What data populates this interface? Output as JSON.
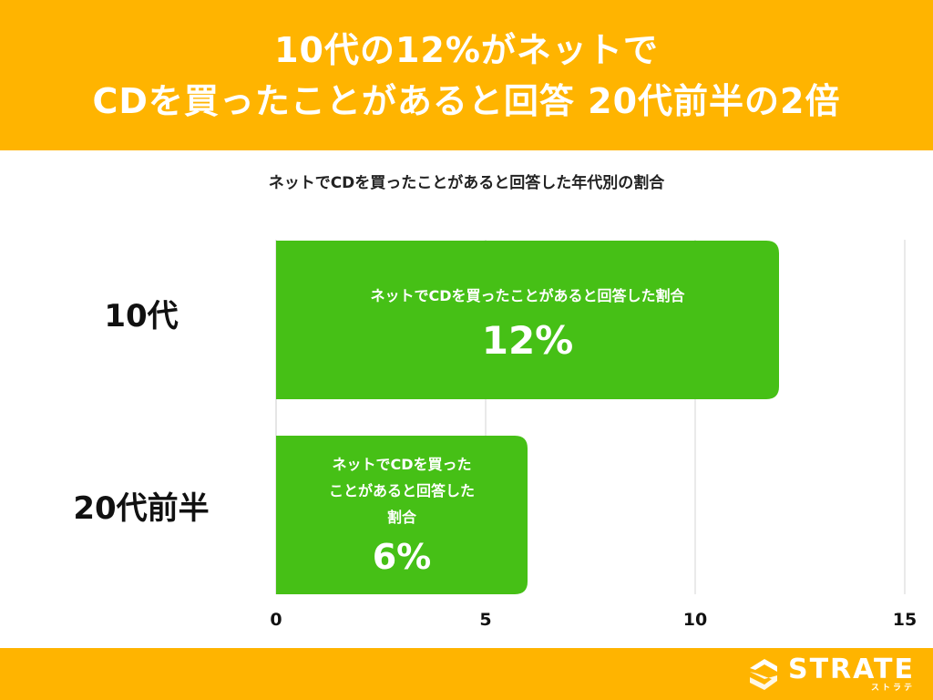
{
  "header": {
    "title_line1": "10代の12%がネットで",
    "title_line2": "CDを買ったことがあると回答 20代前半の2倍"
  },
  "chart_data": {
    "type": "bar",
    "orientation": "horizontal",
    "title": "ネットでCDを買ったことがあると回答した年代別の割合",
    "categories": [
      "10代",
      "20代前半"
    ],
    "series": [
      {
        "values": [
          12,
          6
        ],
        "bar_captions": [
          [
            "ネットでCDを買ったことがあると回答した割合"
          ],
          [
            "ネットでCDを買った",
            "ことがあると回答した",
            "割合"
          ]
        ],
        "value_labels": [
          "12%",
          "6%"
        ]
      }
    ],
    "xlim": [
      0,
      15
    ],
    "xticks": [
      "0",
      "5",
      "10",
      "15"
    ],
    "grid": true,
    "legend": "none"
  },
  "colors": {
    "banner": "#FFB400",
    "bar": "#46C016",
    "grid": "#DDDDDD",
    "text": "#111111"
  },
  "footer": {
    "logo_text": "STRATE",
    "logo_sub": "ストラテ",
    "logo_icon": "strate-s-logo-icon"
  }
}
